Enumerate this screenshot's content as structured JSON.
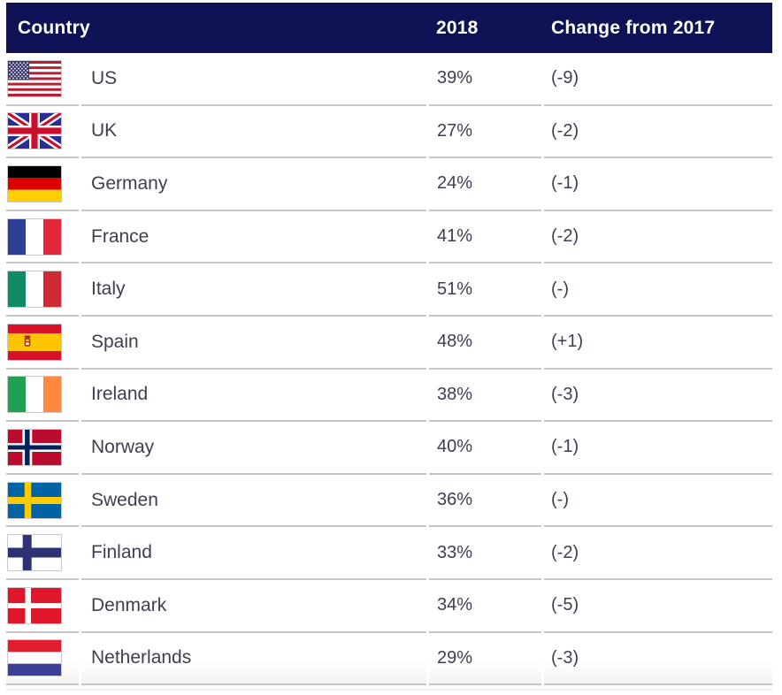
{
  "colors": {
    "header_bg": "#0f1254",
    "header_text": "#ffffff",
    "body_text": "#3e3e50",
    "separator": "#c5c5c9"
  },
  "chart_data": {
    "type": "table",
    "columns": [
      {
        "key": "country",
        "label": "Country"
      },
      {
        "key": "value",
        "label": "2018"
      },
      {
        "key": "change",
        "label": "Change from 2017"
      }
    ],
    "rows": [
      {
        "flag": "us",
        "country": "US",
        "value": "39%",
        "change": "(-9)"
      },
      {
        "flag": "uk",
        "country": "UK",
        "value": "27%",
        "change": "(-2)"
      },
      {
        "flag": "germany",
        "country": "Germany",
        "value": "24%",
        "change": "(-1)"
      },
      {
        "flag": "france",
        "country": "France",
        "value": "41%",
        "change": "(-2)"
      },
      {
        "flag": "italy",
        "country": "Italy",
        "value": "51%",
        "change": "(-)"
      },
      {
        "flag": "spain",
        "country": "Spain",
        "value": "48%",
        "change": "(+1)"
      },
      {
        "flag": "ireland",
        "country": "Ireland",
        "value": "38%",
        "change": "(-3)"
      },
      {
        "flag": "norway",
        "country": "Norway",
        "value": "40%",
        "change": "(-1)"
      },
      {
        "flag": "sweden",
        "country": "Sweden",
        "value": "36%",
        "change": "(-)"
      },
      {
        "flag": "finland",
        "country": "Finland",
        "value": "33%",
        "change": "(-2)"
      },
      {
        "flag": "denmark",
        "country": "Denmark",
        "value": "34%",
        "change": "(-5)"
      },
      {
        "flag": "netherlands",
        "country": "Netherlands",
        "value": "29%",
        "change": "(-3)"
      }
    ]
  }
}
